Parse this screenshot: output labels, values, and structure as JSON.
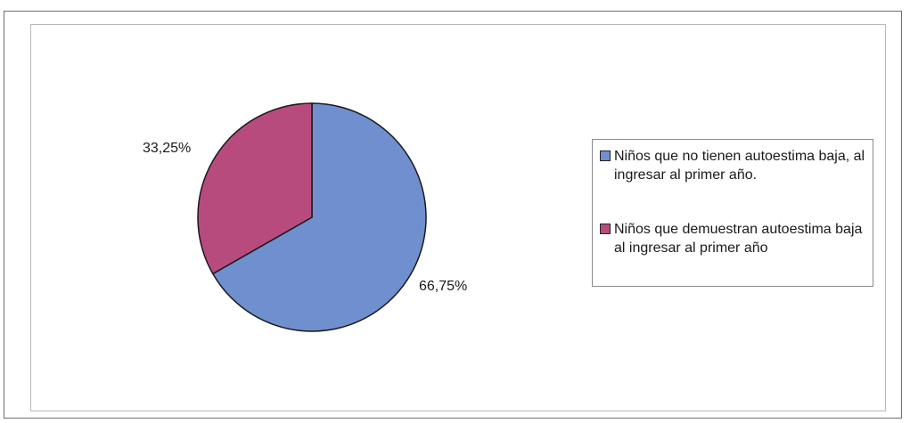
{
  "chart_data": {
    "type": "pie",
    "slices": [
      {
        "label": "Niños que no tienen autoestima baja, al ingresar al primer año.",
        "value": 66.75,
        "display": "66,75%",
        "color": "#6f8fcf"
      },
      {
        "label": "Niños que demuestran autoestima baja al ingresar al primer año",
        "value": 33.25,
        "display": "33,25%",
        "color": "#b84b7e"
      }
    ],
    "legend_position": "right",
    "start_angle_deg": 0,
    "direction": "clockwise"
  }
}
